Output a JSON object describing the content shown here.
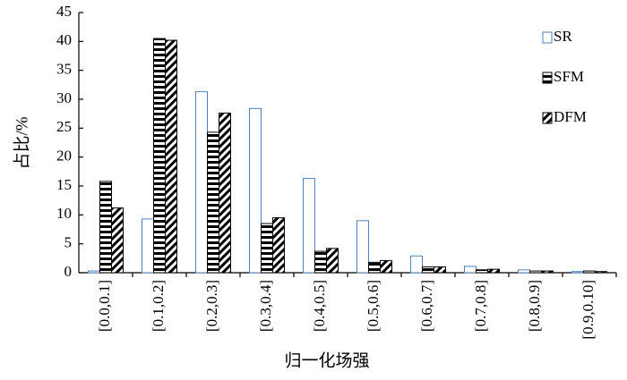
{
  "chart_data": {
    "type": "bar",
    "x_label": "归一化场强",
    "y_label": "占比/%",
    "categories": [
      "[0.0,0.1]",
      "[0.1,0.2]",
      "[0.2,0.3]",
      "[0.3,0.4]",
      "[0.4,0.5]",
      "[0.5,0.6]",
      "[0.6,0.7]",
      "[0.7,0.8]",
      "[0.8,0.9]",
      "[0.9,0.10]"
    ],
    "series": [
      {
        "name": "SR",
        "color": "#4f81bd",
        "hatch": "none",
        "values": [
          0.3,
          9.3,
          31.3,
          28.4,
          16.3,
          9.0,
          2.9,
          1.1,
          0.5,
          0.2
        ]
      },
      {
        "name": "SFM",
        "color": "#000000",
        "hatch": "horizontal",
        "values": [
          15.8,
          40.5,
          24.3,
          8.5,
          3.7,
          1.8,
          1.0,
          0.5,
          0.3,
          0.3
        ]
      },
      {
        "name": "DFM",
        "color": "#000000",
        "hatch": "diagonal",
        "values": [
          11.2,
          40.2,
          27.6,
          9.5,
          4.2,
          2.1,
          1.0,
          0.6,
          0.3,
          0.2
        ]
      }
    ],
    "ylim": [
      0,
      45
    ],
    "yticks": [
      0,
      5,
      10,
      15,
      20,
      25,
      30,
      35,
      40,
      45
    ],
    "legend": "upper right",
    "grid": false
  }
}
